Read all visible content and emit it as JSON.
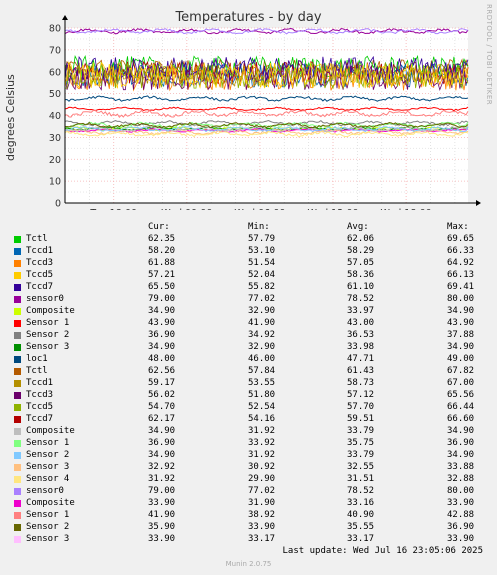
{
  "title": "Temperatures - by day",
  "watermark": "RRDTOOL / TOBI OETIKER",
  "ylabel": "degrees Celsius",
  "footer": {
    "last_update": "Last update: Wed Jul 16 23:05:06 2025",
    "munin": "Munin 2.0.75"
  },
  "legend_headers": {
    "cur": "Cur:",
    "min": "Min:",
    "avg": "Avg:",
    "max": "Max:"
  },
  "legend": [
    {
      "name": "Tctl",
      "color": "#00cc00",
      "cur": "62.35",
      "min": "57.79",
      "avg": "62.06",
      "max": "69.65"
    },
    {
      "name": "Tccd1",
      "color": "#0066b3",
      "cur": "58.20",
      "min": "53.10",
      "avg": "58.29",
      "max": "66.33"
    },
    {
      "name": "Tccd3",
      "color": "#ff8000",
      "cur": "61.88",
      "min": "51.54",
      "avg": "57.05",
      "max": "64.92"
    },
    {
      "name": "Tccd5",
      "color": "#ffcc00",
      "cur": "57.21",
      "min": "52.04",
      "avg": "58.36",
      "max": "66.13"
    },
    {
      "name": "Tccd7",
      "color": "#330099",
      "cur": "65.50",
      "min": "55.82",
      "avg": "61.10",
      "max": "69.41"
    },
    {
      "name": "sensor0",
      "color": "#990099",
      "cur": "79.00",
      "min": "77.02",
      "avg": "78.52",
      "max": "80.00"
    },
    {
      "name": "Composite",
      "color": "#ccff00",
      "cur": "34.90",
      "min": "32.90",
      "avg": "33.97",
      "max": "34.90"
    },
    {
      "name": "Sensor 1",
      "color": "#ff0000",
      "cur": "43.90",
      "min": "41.90",
      "avg": "43.00",
      "max": "43.90"
    },
    {
      "name": "Sensor 2",
      "color": "#808080",
      "cur": "36.90",
      "min": "34.92",
      "avg": "36.53",
      "max": "37.88"
    },
    {
      "name": "Sensor 3",
      "color": "#008f00",
      "cur": "34.90",
      "min": "32.90",
      "avg": "33.98",
      "max": "34.90"
    },
    {
      "name": "loc1",
      "color": "#00487d",
      "cur": "48.00",
      "min": "46.00",
      "avg": "47.71",
      "max": "49.00"
    },
    {
      "name": "Tctl",
      "color": "#b35a00",
      "cur": "62.56",
      "min": "57.84",
      "avg": "61.43",
      "max": "67.82"
    },
    {
      "name": "Tccd1",
      "color": "#b38f00",
      "cur": "59.17",
      "min": "53.55",
      "avg": "58.73",
      "max": "67.00"
    },
    {
      "name": "Tccd3",
      "color": "#6b006b",
      "cur": "56.02",
      "min": "51.80",
      "avg": "57.12",
      "max": "65.56"
    },
    {
      "name": "Tccd5",
      "color": "#8fb300",
      "cur": "54.70",
      "min": "52.54",
      "avg": "57.70",
      "max": "66.44"
    },
    {
      "name": "Tccd7",
      "color": "#b30000",
      "cur": "62.17",
      "min": "54.16",
      "avg": "59.51",
      "max": "66.60"
    },
    {
      "name": "Composite",
      "color": "#bebebe",
      "cur": "34.90",
      "min": "31.92",
      "avg": "33.79",
      "max": "34.90"
    },
    {
      "name": "Sensor 1",
      "color": "#80ff80",
      "cur": "36.90",
      "min": "33.92",
      "avg": "35.75",
      "max": "36.90"
    },
    {
      "name": "Sensor 2",
      "color": "#80c9ff",
      "cur": "34.90",
      "min": "31.92",
      "avg": "33.79",
      "max": "34.90"
    },
    {
      "name": "Sensor 3",
      "color": "#ffc080",
      "cur": "32.92",
      "min": "30.92",
      "avg": "32.55",
      "max": "33.88"
    },
    {
      "name": "Sensor 4",
      "color": "#ffe680",
      "cur": "31.92",
      "min": "29.90",
      "avg": "31.51",
      "max": "32.88"
    },
    {
      "name": "sensor0",
      "color": "#aa80ff",
      "cur": "79.00",
      "min": "77.02",
      "avg": "78.52",
      "max": "80.00"
    },
    {
      "name": "Composite",
      "color": "#ee00cc",
      "cur": "33.90",
      "min": "31.90",
      "avg": "33.16",
      "max": "33.90"
    },
    {
      "name": "Sensor 1",
      "color": "#ff8080",
      "cur": "41.90",
      "min": "38.92",
      "avg": "40.90",
      "max": "42.88"
    },
    {
      "name": "Sensor 2",
      "color": "#666600",
      "cur": "35.90",
      "min": "33.90",
      "avg": "35.55",
      "max": "36.90"
    },
    {
      "name": "Sensor 3",
      "color": "#ffbfff",
      "cur": "33.90",
      "min": "33.17",
      "avg": "33.17",
      "max": "33.90"
    }
  ],
  "chart_data": {
    "type": "line",
    "title": "Temperatures - by day",
    "ylabel": "degrees Celsius",
    "xlabel": "",
    "ylim": [
      0,
      80
    ],
    "xlim": [
      "Tue 14:00",
      "Wed 23:05"
    ],
    "y_ticks": [
      0,
      10,
      20,
      30,
      40,
      50,
      60,
      70,
      80
    ],
    "x_ticks": [
      "Tue 18:00",
      "Wed 00:00",
      "Wed 06:00",
      "Wed 12:00",
      "Wed 18:00"
    ],
    "x_tick_hours": [
      4,
      10,
      16,
      22,
      28
    ],
    "x_range_hours": 33.08,
    "grid": true,
    "legend_position": "bottom",
    "series": [
      {
        "name": "Tctl",
        "color": "#00cc00",
        "cur": 62.35,
        "min": 57.79,
        "avg": 62.06,
        "max": 69.65
      },
      {
        "name": "Tccd1",
        "color": "#0066b3",
        "cur": 58.2,
        "min": 53.1,
        "avg": 58.29,
        "max": 66.33
      },
      {
        "name": "Tccd3",
        "color": "#ff8000",
        "cur": 61.88,
        "min": 51.54,
        "avg": 57.05,
        "max": 64.92
      },
      {
        "name": "Tccd5",
        "color": "#ffcc00",
        "cur": 57.21,
        "min": 52.04,
        "avg": 58.36,
        "max": 66.13
      },
      {
        "name": "Tccd7",
        "color": "#330099",
        "cur": 65.5,
        "min": 55.82,
        "avg": 61.1,
        "max": 69.41
      },
      {
        "name": "sensor0",
        "color": "#990099",
        "cur": 79.0,
        "min": 77.02,
        "avg": 78.52,
        "max": 80.0
      },
      {
        "name": "Composite",
        "color": "#ccff00",
        "cur": 34.9,
        "min": 32.9,
        "avg": 33.97,
        "max": 34.9
      },
      {
        "name": "Sensor 1",
        "color": "#ff0000",
        "cur": 43.9,
        "min": 41.9,
        "avg": 43.0,
        "max": 43.9
      },
      {
        "name": "Sensor 2",
        "color": "#808080",
        "cur": 36.9,
        "min": 34.92,
        "avg": 36.53,
        "max": 37.88
      },
      {
        "name": "Sensor 3",
        "color": "#008f00",
        "cur": 34.9,
        "min": 32.9,
        "avg": 33.98,
        "max": 34.9
      },
      {
        "name": "loc1",
        "color": "#00487d",
        "cur": 48.0,
        "min": 46.0,
        "avg": 47.71,
        "max": 49.0
      },
      {
        "name": "Tctl",
        "color": "#b35a00",
        "cur": 62.56,
        "min": 57.84,
        "avg": 61.43,
        "max": 67.82
      },
      {
        "name": "Tccd1",
        "color": "#b38f00",
        "cur": 59.17,
        "min": 53.55,
        "avg": 58.73,
        "max": 67.0
      },
      {
        "name": "Tccd3",
        "color": "#6b006b",
        "cur": 56.02,
        "min": 51.8,
        "avg": 57.12,
        "max": 65.56
      },
      {
        "name": "Tccd5",
        "color": "#8fb300",
        "cur": 54.7,
        "min": 52.54,
        "avg": 57.7,
        "max": 66.44
      },
      {
        "name": "Tccd7",
        "color": "#b30000",
        "cur": 62.17,
        "min": 54.16,
        "avg": 59.51,
        "max": 66.6
      },
      {
        "name": "Composite",
        "color": "#bebebe",
        "cur": 34.9,
        "min": 31.92,
        "avg": 33.79,
        "max": 34.9
      },
      {
        "name": "Sensor 1",
        "color": "#80ff80",
        "cur": 36.9,
        "min": 33.92,
        "avg": 35.75,
        "max": 36.9
      },
      {
        "name": "Sensor 2",
        "color": "#80c9ff",
        "cur": 34.9,
        "min": 31.92,
        "avg": 33.79,
        "max": 34.9
      },
      {
        "name": "Sensor 3",
        "color": "#ffc080",
        "cur": 32.92,
        "min": 30.92,
        "avg": 32.55,
        "max": 33.88
      },
      {
        "name": "Sensor 4",
        "color": "#ffe680",
        "cur": 31.92,
        "min": 29.9,
        "avg": 31.51,
        "max": 32.88
      },
      {
        "name": "sensor0",
        "color": "#aa80ff",
        "cur": 79.0,
        "min": 77.02,
        "avg": 78.52,
        "max": 80.0
      },
      {
        "name": "Composite",
        "color": "#ee00cc",
        "cur": 33.9,
        "min": 31.9,
        "avg": 33.16,
        "max": 33.9
      },
      {
        "name": "Sensor 1",
        "color": "#ff8080",
        "cur": 41.9,
        "min": 38.92,
        "avg": 40.9,
        "max": 42.88
      },
      {
        "name": "Sensor 2",
        "color": "#666600",
        "cur": 35.9,
        "min": 33.9,
        "avg": 35.55,
        "max": 36.9
      },
      {
        "name": "Sensor 3",
        "color": "#ffbfff",
        "cur": 33.9,
        "min": 33.17,
        "avg": 33.17,
        "max": 33.9
      }
    ]
  }
}
